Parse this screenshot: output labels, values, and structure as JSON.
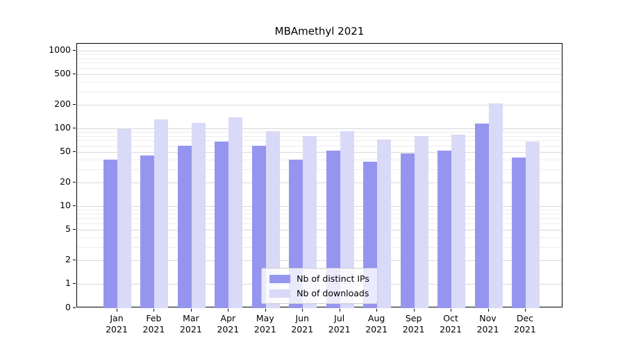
{
  "colors": {
    "grid_major": "#d8d8d8",
    "grid_minor": "#ececec",
    "axis": "#000000",
    "background": "#ffffff"
  },
  "chart_data": {
    "type": "bar",
    "title": "MBAmethyl 2021",
    "categories": [
      "Jan 2021",
      "Feb 2021",
      "Mar 2021",
      "Apr 2021",
      "May 2021",
      "Jun 2021",
      "Jul 2021",
      "Aug 2021",
      "Sep 2021",
      "Oct 2021",
      "Nov 2021",
      "Dec 2021"
    ],
    "series": [
      {
        "name": "Nb of distinct IPs",
        "color": "#9595ef",
        "values": [
          40,
          45,
          60,
          68,
          60,
          40,
          52,
          37,
          48,
          52,
          115,
          42
        ]
      },
      {
        "name": "Nb of downloads",
        "color": "#d9d9f8",
        "values": [
          97,
          130,
          118,
          138,
          92,
          80,
          92,
          72,
          80,
          83,
          210,
          68
        ]
      }
    ],
    "xlabel": "",
    "ylabel": "",
    "yaxis": {
      "scale": "symlog",
      "major_ticks": [
        0,
        1,
        2,
        5,
        10,
        20,
        50,
        100,
        200,
        500,
        1000
      ],
      "minor_ticks": [
        3,
        4,
        6,
        7,
        8,
        9,
        30,
        40,
        60,
        70,
        80,
        90,
        300,
        400,
        600,
        700,
        800,
        900
      ],
      "range": [
        0,
        1200
      ]
    },
    "grid": true,
    "legend_position": "lower center"
  }
}
